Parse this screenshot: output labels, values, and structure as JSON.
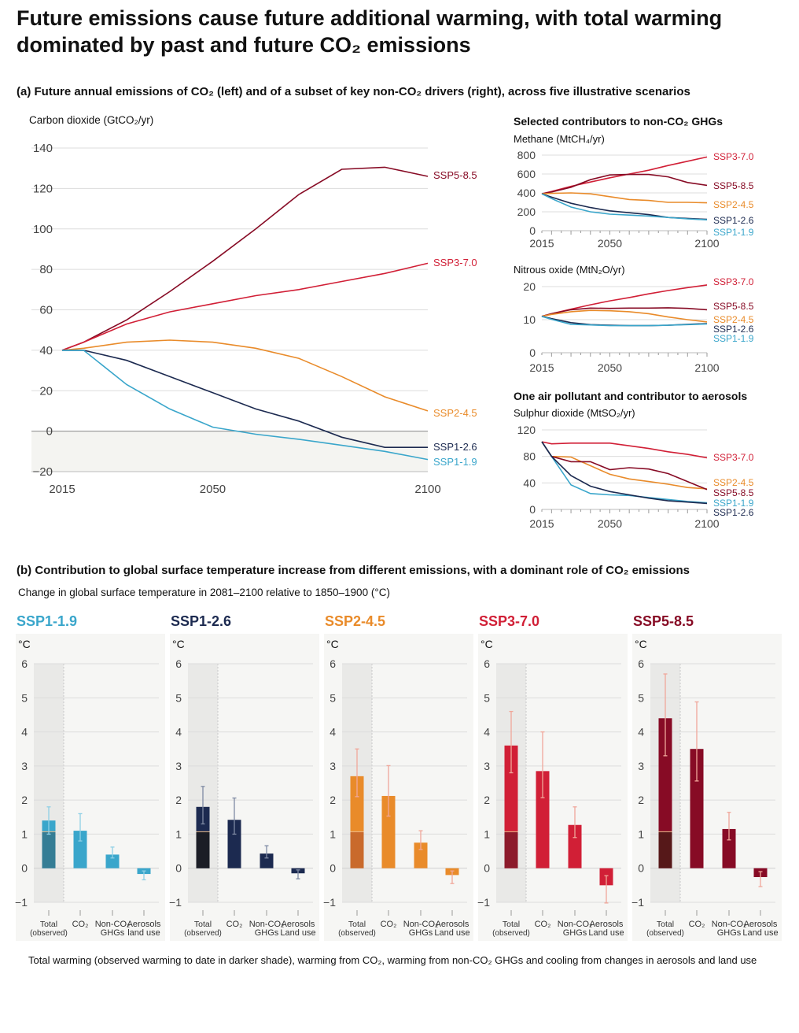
{
  "title": "Future emissions cause future additional warming, with total warming dominated by past and future CO₂ emissions",
  "panel_a": {
    "heading": "(a) Future annual emissions of CO₂ (left) and of a subset of key non-CO₂ drivers (right), across five illustrative scenarios",
    "ghg_heading": "Selected contributors to non-CO₂ GHGs",
    "aerosol_heading": "One air pollutant and contributor to aerosols"
  },
  "panel_b": {
    "heading": "(b) Contribution to global surface temperature increase from different emissions, with a dominant role of CO₂ emissions",
    "subheading": "Change in global surface temperature in 2081–2100 relative to 1850–1900 (°C)",
    "caption": "Total warming (observed warming to date in darker shade), warming from CO₂, warming from non-CO₂ GHGs and cooling from changes in aerosols and land use"
  },
  "colors": {
    "SSP1-1.9": "#3aa6cb",
    "SSP1-2.6": "#1c2a50",
    "SSP2-4.5": "#e98b2a",
    "SSP3-7.0": "#d11f36",
    "SSP5-8.5": "#870b25",
    "grid": "#dcdcdc",
    "panel_bg": "#f6f6f4"
  },
  "chart_data": [
    {
      "id": "co2",
      "type": "line",
      "ylabel": "Carbon dioxide (GtCO₂/yr)",
      "ylim": [
        -20,
        140
      ],
      "yticks": [
        -20,
        0,
        20,
        40,
        60,
        80,
        100,
        120,
        140
      ],
      "xlim": [
        2015,
        2100
      ],
      "xticks": [
        2015,
        2050,
        2100
      ],
      "x": [
        2015,
        2020,
        2030,
        2040,
        2050,
        2060,
        2070,
        2080,
        2090,
        2100
      ],
      "series": [
        {
          "name": "SSP5-8.5",
          "values": [
            40,
            44,
            55,
            69,
            84,
            100,
            117,
            129.5,
            130.5,
            126
          ]
        },
        {
          "name": "SSP3-7.0",
          "values": [
            40,
            44,
            53,
            59,
            63,
            67,
            70,
            74,
            78,
            83
          ]
        },
        {
          "name": "SSP2-4.5",
          "values": [
            40,
            41,
            44,
            45,
            44,
            41,
            36,
            27,
            17,
            10
          ]
        },
        {
          "name": "SSP1-2.6",
          "values": [
            40,
            40,
            35,
            27,
            19,
            11,
            5,
            -3,
            -8,
            -8
          ]
        },
        {
          "name": "SSP1-1.9",
          "values": [
            40,
            40,
            23,
            11,
            2,
            -1.5,
            -4,
            -7,
            -10,
            -14
          ]
        }
      ]
    },
    {
      "id": "ch4",
      "type": "line",
      "ylabel": "Methane (MtCH₄/yr)",
      "ylim": [
        0,
        800
      ],
      "yticks": [
        0,
        200,
        400,
        600,
        800
      ],
      "xlim": [
        2015,
        2100
      ],
      "xticks": [
        2015,
        2050,
        2100
      ],
      "x": [
        2015,
        2020,
        2030,
        2040,
        2050,
        2060,
        2070,
        2080,
        2090,
        2100
      ],
      "series": [
        {
          "name": "SSP3-7.0",
          "values": [
            390,
            415,
            470,
            515,
            560,
            600,
            640,
            690,
            735,
            780
          ]
        },
        {
          "name": "SSP5-8.5",
          "values": [
            390,
            410,
            460,
            540,
            590,
            595,
            595,
            570,
            510,
            480
          ]
        },
        {
          "name": "SSP2-4.5",
          "values": [
            390,
            395,
            400,
            390,
            360,
            330,
            320,
            300,
            300,
            295
          ]
        },
        {
          "name": "SSP1-2.6",
          "values": [
            390,
            355,
            290,
            245,
            210,
            190,
            170,
            140,
            130,
            120
          ]
        },
        {
          "name": "SSP1-1.9",
          "values": [
            390,
            340,
            250,
            200,
            175,
            165,
            155,
            140,
            125,
            115
          ]
        }
      ]
    },
    {
      "id": "n2o",
      "type": "line",
      "ylabel": "Nitrous oxide (MtN₂O/yr)",
      "ylim": [
        0,
        20
      ],
      "yticks": [
        0,
        10,
        20
      ],
      "xlim": [
        2015,
        2100
      ],
      "xticks": [
        2015,
        2050,
        2100
      ],
      "x": [
        2015,
        2020,
        2030,
        2040,
        2050,
        2060,
        2070,
        2080,
        2090,
        2100
      ],
      "series": [
        {
          "name": "SSP3-7.0",
          "values": [
            11,
            11.8,
            13.2,
            14.5,
            15.7,
            16.7,
            17.8,
            18.8,
            19.7,
            20.5
          ]
        },
        {
          "name": "SSP5-8.5",
          "values": [
            11,
            11.8,
            13,
            13.5,
            13.4,
            13.5,
            13.5,
            13.6,
            13.4,
            13
          ]
        },
        {
          "name": "SSP2-4.5",
          "values": [
            11,
            11.6,
            12.4,
            12.8,
            12.7,
            12.4,
            11.8,
            10.8,
            10,
            9.3
          ]
        },
        {
          "name": "SSP1-2.6",
          "values": [
            11,
            10.3,
            9.1,
            8.5,
            8.3,
            8.2,
            8.2,
            8.3,
            8.6,
            8.8
          ]
        },
        {
          "name": "SSP1-1.9",
          "values": [
            11,
            10.1,
            8.6,
            8.4,
            8.2,
            8.2,
            8.2,
            8.3,
            8.5,
            8.7
          ]
        }
      ]
    },
    {
      "id": "so2",
      "type": "line",
      "ylabel": "Sulphur dioxide (MtSO₂/yr)",
      "ylim": [
        0,
        120
      ],
      "yticks": [
        0,
        40,
        80,
        120
      ],
      "xlim": [
        2015,
        2100
      ],
      "xticks": [
        2015,
        2050,
        2100
      ],
      "x": [
        2015,
        2020,
        2030,
        2040,
        2050,
        2060,
        2070,
        2080,
        2090,
        2100
      ],
      "series": [
        {
          "name": "SSP3-7.0",
          "values": [
            102,
            99,
            100,
            100,
            100,
            96,
            92,
            87,
            83,
            78
          ]
        },
        {
          "name": "SSP2-4.5",
          "values": [
            102,
            80,
            79,
            66,
            53,
            46,
            42,
            38,
            33,
            31
          ]
        },
        {
          "name": "SSP5-8.5",
          "values": [
            102,
            80,
            72,
            72,
            60,
            63,
            61,
            54,
            42,
            30
          ]
        },
        {
          "name": "SSP1-1.9",
          "values": [
            102,
            80,
            37,
            24,
            22,
            21,
            18,
            15,
            12,
            10
          ]
        },
        {
          "name": "SSP1-2.6",
          "values": [
            102,
            80,
            51,
            35,
            27,
            22,
            17,
            13,
            11,
            9
          ]
        }
      ]
    },
    {
      "id": "warming",
      "type": "bar",
      "unit": "°C",
      "ylim": [
        -1,
        6
      ],
      "yticks": [
        -1,
        0,
        1,
        2,
        3,
        4,
        5,
        6
      ],
      "categories": [
        "Total (observed)",
        "CO₂",
        "Non-CO₂ GHGs",
        "Aerosols land use"
      ],
      "category_lines": [
        [
          "Total",
          "(observed)"
        ],
        [
          "CO₂",
          ""
        ],
        [
          "Non-CO₂",
          "GHGs"
        ],
        [
          "Aerosols",
          "land use"
        ]
      ],
      "observed_to_date": 1.07,
      "scenarios": [
        {
          "name": "SSP1-1.9",
          "values": [
            1.4,
            1.1,
            0.4,
            -0.17
          ],
          "ranges": [
            [
              1.0,
              1.8
            ],
            [
              0.8,
              1.6
            ],
            [
              0.3,
              0.62
            ],
            [
              -0.34,
              -0.08
            ]
          ],
          "aerosol_label": "land use",
          "obs_color": "#357d95"
        },
        {
          "name": "SSP1-2.6",
          "values": [
            1.8,
            1.42,
            0.43,
            -0.15
          ],
          "ranges": [
            [
              1.3,
              2.4
            ],
            [
              1.0,
              2.06
            ],
            [
              0.3,
              0.66
            ],
            [
              -0.31,
              -0.05
            ]
          ],
          "aerosol_label": "Land use",
          "obs_color": "#1b1d26"
        },
        {
          "name": "SSP2-4.5",
          "values": [
            2.7,
            2.12,
            0.75,
            -0.2
          ],
          "ranges": [
            [
              2.1,
              3.5
            ],
            [
              1.53,
              3.01
            ],
            [
              0.55,
              1.1
            ],
            [
              -0.45,
              -0.08
            ]
          ],
          "aerosol_label": "Land use",
          "obs_color": "#c96a2c"
        },
        {
          "name": "SSP3-7.0",
          "values": [
            3.6,
            2.85,
            1.27,
            -0.5
          ],
          "ranges": [
            [
              2.8,
              4.6
            ],
            [
              2.07,
              4.0
            ],
            [
              0.9,
              1.8
            ],
            [
              -1.02,
              -0.22
            ]
          ],
          "aerosol_label": "Land use",
          "obs_color": "#8c1a2b"
        },
        {
          "name": "SSP5-8.5",
          "values": [
            4.4,
            3.5,
            1.15,
            -0.26
          ],
          "ranges": [
            [
              3.3,
              5.7
            ],
            [
              2.56,
              4.88
            ],
            [
              0.83,
              1.64
            ],
            [
              -0.54,
              -0.1
            ]
          ],
          "aerosol_label": "Land use",
          "obs_color": "#561819"
        }
      ]
    }
  ]
}
